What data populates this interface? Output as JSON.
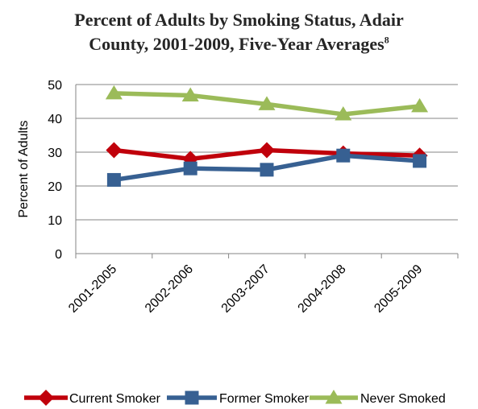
{
  "title": {
    "line1": "Percent of Adults by Smoking Status, Adair",
    "line2": "County, 2001-2009, Five-Year Averages",
    "footnote": "8"
  },
  "chart_data": {
    "type": "line",
    "title": "Percent of Adults by Smoking Status, Adair County, 2001-2009, Five-Year Averages",
    "xlabel": "",
    "ylabel": "Percent of Adults",
    "categories": [
      "2001-2005",
      "2002-2006",
      "2003-2007",
      "2004-2008",
      "2005-2009"
    ],
    "ylim": [
      0,
      50
    ],
    "yticks": [
      0,
      10,
      20,
      30,
      40,
      50
    ],
    "grid": "horizontal",
    "legend_position": "bottom",
    "series": [
      {
        "name": "Current Smoker",
        "values": [
          30.6,
          28.0,
          30.6,
          29.6,
          29.0
        ],
        "color": "#c0000b",
        "marker": "diamond"
      },
      {
        "name": "Former Smoker",
        "values": [
          21.8,
          25.2,
          24.8,
          29.0,
          27.4
        ],
        "color": "#376092",
        "marker": "square"
      },
      {
        "name": "Never Smoked",
        "values": [
          47.4,
          46.8,
          44.2,
          41.2,
          43.6
        ],
        "color": "#9bbb59",
        "marker": "triangle"
      }
    ]
  }
}
